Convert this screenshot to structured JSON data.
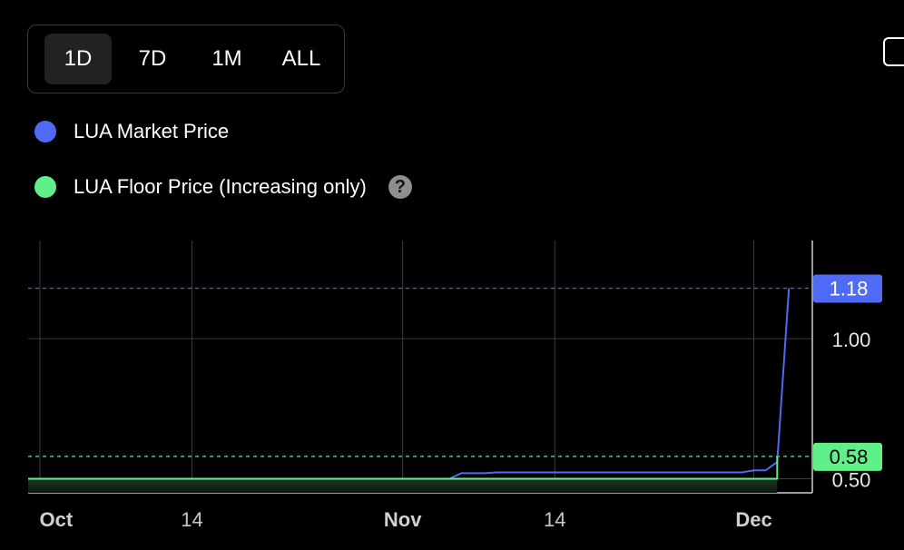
{
  "range_tabs": [
    {
      "label": "1D",
      "active": true
    },
    {
      "label": "7D",
      "active": false
    },
    {
      "label": "1M",
      "active": false
    },
    {
      "label": "ALL",
      "active": false
    }
  ],
  "legend": [
    {
      "label": "LUA Market Price",
      "color": "#4f6bf5"
    },
    {
      "label": "LUA Floor Price (Increasing only)",
      "color": "#5ff08a"
    }
  ],
  "help_icon_glyph": "?",
  "chart_data": {
    "type": "line",
    "x_ticks": [
      "Oct",
      "14",
      "Nov",
      "14",
      "Dec"
    ],
    "y_ticks": [
      "0.50",
      "1.00"
    ],
    "x_range": [
      "2024-09-30",
      "2024-12-06"
    ],
    "ylim": [
      0.45,
      1.35
    ],
    "price_labels": [
      {
        "label": "1.18",
        "value": 1.18,
        "color": "#4f6bf5"
      },
      {
        "label": "0.58",
        "value": 0.58,
        "color": "#5ff08a"
      }
    ],
    "series": [
      {
        "name": "LUA Market Price",
        "color": "#4f6bf5",
        "x": [
          "2024-11-05",
          "2024-11-06",
          "2024-11-08",
          "2024-11-09",
          "2024-11-30",
          "2024-12-01",
          "2024-12-02",
          "2024-12-03",
          "2024-12-04"
        ],
        "y": [
          0.5,
          0.52,
          0.52,
          0.523,
          0.523,
          0.53,
          0.53,
          0.56,
          1.18
        ]
      },
      {
        "name": "LUA Floor Price (Increasing only)",
        "color": "#5ff08a",
        "x": [
          "2024-09-30",
          "2024-12-03",
          "2024-12-03"
        ],
        "y": [
          0.5,
          0.5,
          0.58
        ]
      }
    ]
  }
}
